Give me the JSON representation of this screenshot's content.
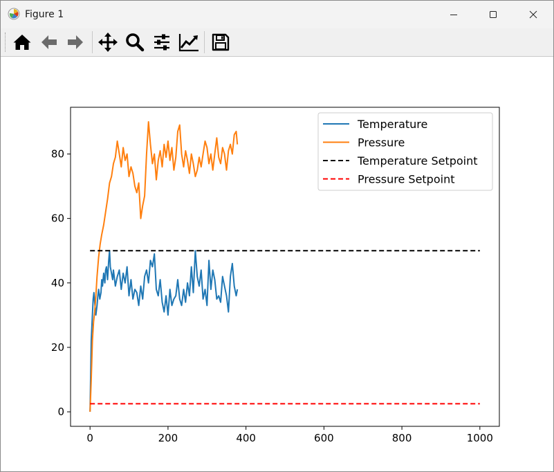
{
  "window": {
    "title": "Figure 1",
    "controls": [
      "minimize-icon",
      "maximize-icon",
      "close-icon"
    ]
  },
  "toolbar": {
    "buttons": [
      {
        "name": "home-button",
        "icon": "home-icon"
      },
      {
        "name": "back-button",
        "icon": "arrow-left-icon"
      },
      {
        "name": "forward-button",
        "icon": "arrow-right-icon"
      },
      {
        "name": "pan-button",
        "icon": "move-icon"
      },
      {
        "name": "zoom-button",
        "icon": "magnifier-icon"
      },
      {
        "name": "configure-subplots-button",
        "icon": "sliders-icon"
      },
      {
        "name": "edit-axes-button",
        "icon": "line-chart-icon"
      },
      {
        "name": "save-button",
        "icon": "floppy-disk-icon"
      }
    ]
  },
  "chart_data": {
    "type": "line",
    "title": "",
    "xlabel": "",
    "ylabel": "",
    "xlim": [
      -50,
      1050
    ],
    "ylim": [
      -4.5,
      94.5
    ],
    "x_ticks": [
      0,
      200,
      400,
      600,
      800,
      1000
    ],
    "y_ticks": [
      0,
      20,
      40,
      60,
      80
    ],
    "grid": false,
    "legend_placement": "top-right",
    "series": [
      {
        "name": "Temperature",
        "color": "#1f77b4",
        "style": "solid",
        "x": [
          0,
          3,
          6,
          8,
          10,
          12,
          15,
          18,
          20,
          22,
          25,
          28,
          30,
          32,
          35,
          38,
          40,
          42,
          45,
          48,
          50,
          52,
          55,
          58,
          60,
          65,
          70,
          75,
          80,
          85,
          90,
          95,
          100,
          105,
          110,
          115,
          120,
          125,
          130,
          135,
          140,
          145,
          150,
          155,
          160,
          165,
          170,
          175,
          180,
          185,
          190,
          195,
          200,
          205,
          210,
          215,
          220,
          225,
          230,
          235,
          240,
          245,
          250,
          255,
          260,
          265,
          270,
          275,
          280,
          285,
          290,
          295,
          300,
          305,
          310,
          315,
          320,
          325,
          330,
          335,
          340,
          345,
          350,
          355,
          360,
          365,
          370,
          375,
          378
        ],
        "values": [
          0,
          22,
          30,
          35,
          37,
          34,
          30,
          33,
          36,
          38,
          35,
          37,
          41,
          39,
          43,
          40,
          44,
          45,
          41,
          47,
          50,
          45,
          43,
          41,
          44,
          39,
          42,
          44,
          38,
          43,
          40,
          45,
          36,
          41,
          35,
          38,
          37,
          33,
          39,
          35,
          42,
          44,
          40,
          47,
          45,
          49,
          38,
          36,
          41,
          34,
          31,
          36,
          30,
          38,
          33,
          35,
          36,
          41,
          35,
          33,
          38,
          34,
          40,
          36,
          45,
          37,
          50,
          42,
          39,
          44,
          35,
          38,
          33,
          47,
          38,
          44,
          41,
          35,
          36,
          34,
          42,
          39,
          36,
          31,
          42,
          46,
          39,
          36,
          38
        ]
      },
      {
        "name": "Pressure",
        "color": "#ff7f0e",
        "style": "solid",
        "x": [
          0,
          3,
          6,
          9,
          12,
          15,
          18,
          22,
          26,
          30,
          35,
          40,
          45,
          50,
          55,
          60,
          65,
          70,
          75,
          80,
          85,
          90,
          95,
          100,
          105,
          110,
          115,
          120,
          125,
          130,
          135,
          140,
          145,
          150,
          155,
          160,
          165,
          170,
          175,
          180,
          185,
          190,
          195,
          200,
          205,
          210,
          215,
          220,
          225,
          230,
          235,
          240,
          245,
          250,
          255,
          260,
          265,
          270,
          275,
          280,
          285,
          290,
          295,
          300,
          305,
          310,
          315,
          320,
          325,
          330,
          335,
          340,
          345,
          350,
          355,
          360,
          365,
          370,
          375,
          378
        ],
        "values": [
          0,
          10,
          22,
          28,
          31,
          36,
          42,
          48,
          52,
          55,
          58,
          62,
          66,
          71,
          73,
          77,
          79,
          84,
          80,
          76,
          82,
          78,
          80,
          73,
          76,
          74,
          70,
          68,
          71,
          60,
          64,
          67,
          80,
          90,
          83,
          77,
          80,
          72,
          78,
          81,
          76,
          83,
          79,
          84,
          78,
          82,
          75,
          79,
          87,
          89,
          80,
          76,
          81,
          78,
          74,
          80,
          77,
          73,
          75,
          79,
          76,
          80,
          84,
          82,
          77,
          80,
          75,
          80,
          85,
          79,
          77,
          82,
          80,
          75,
          81,
          83,
          80,
          86,
          87,
          83
        ]
      },
      {
        "name": "Temperature Setpoint",
        "color": "#000000",
        "style": "dashed",
        "x": [
          0,
          1000
        ],
        "values": [
          50,
          50
        ]
      },
      {
        "name": "Pressure Setpoint",
        "color": "#ff0000",
        "style": "dashed",
        "x": [
          0,
          1000
        ],
        "values": [
          2.5,
          2.5
        ]
      }
    ]
  }
}
